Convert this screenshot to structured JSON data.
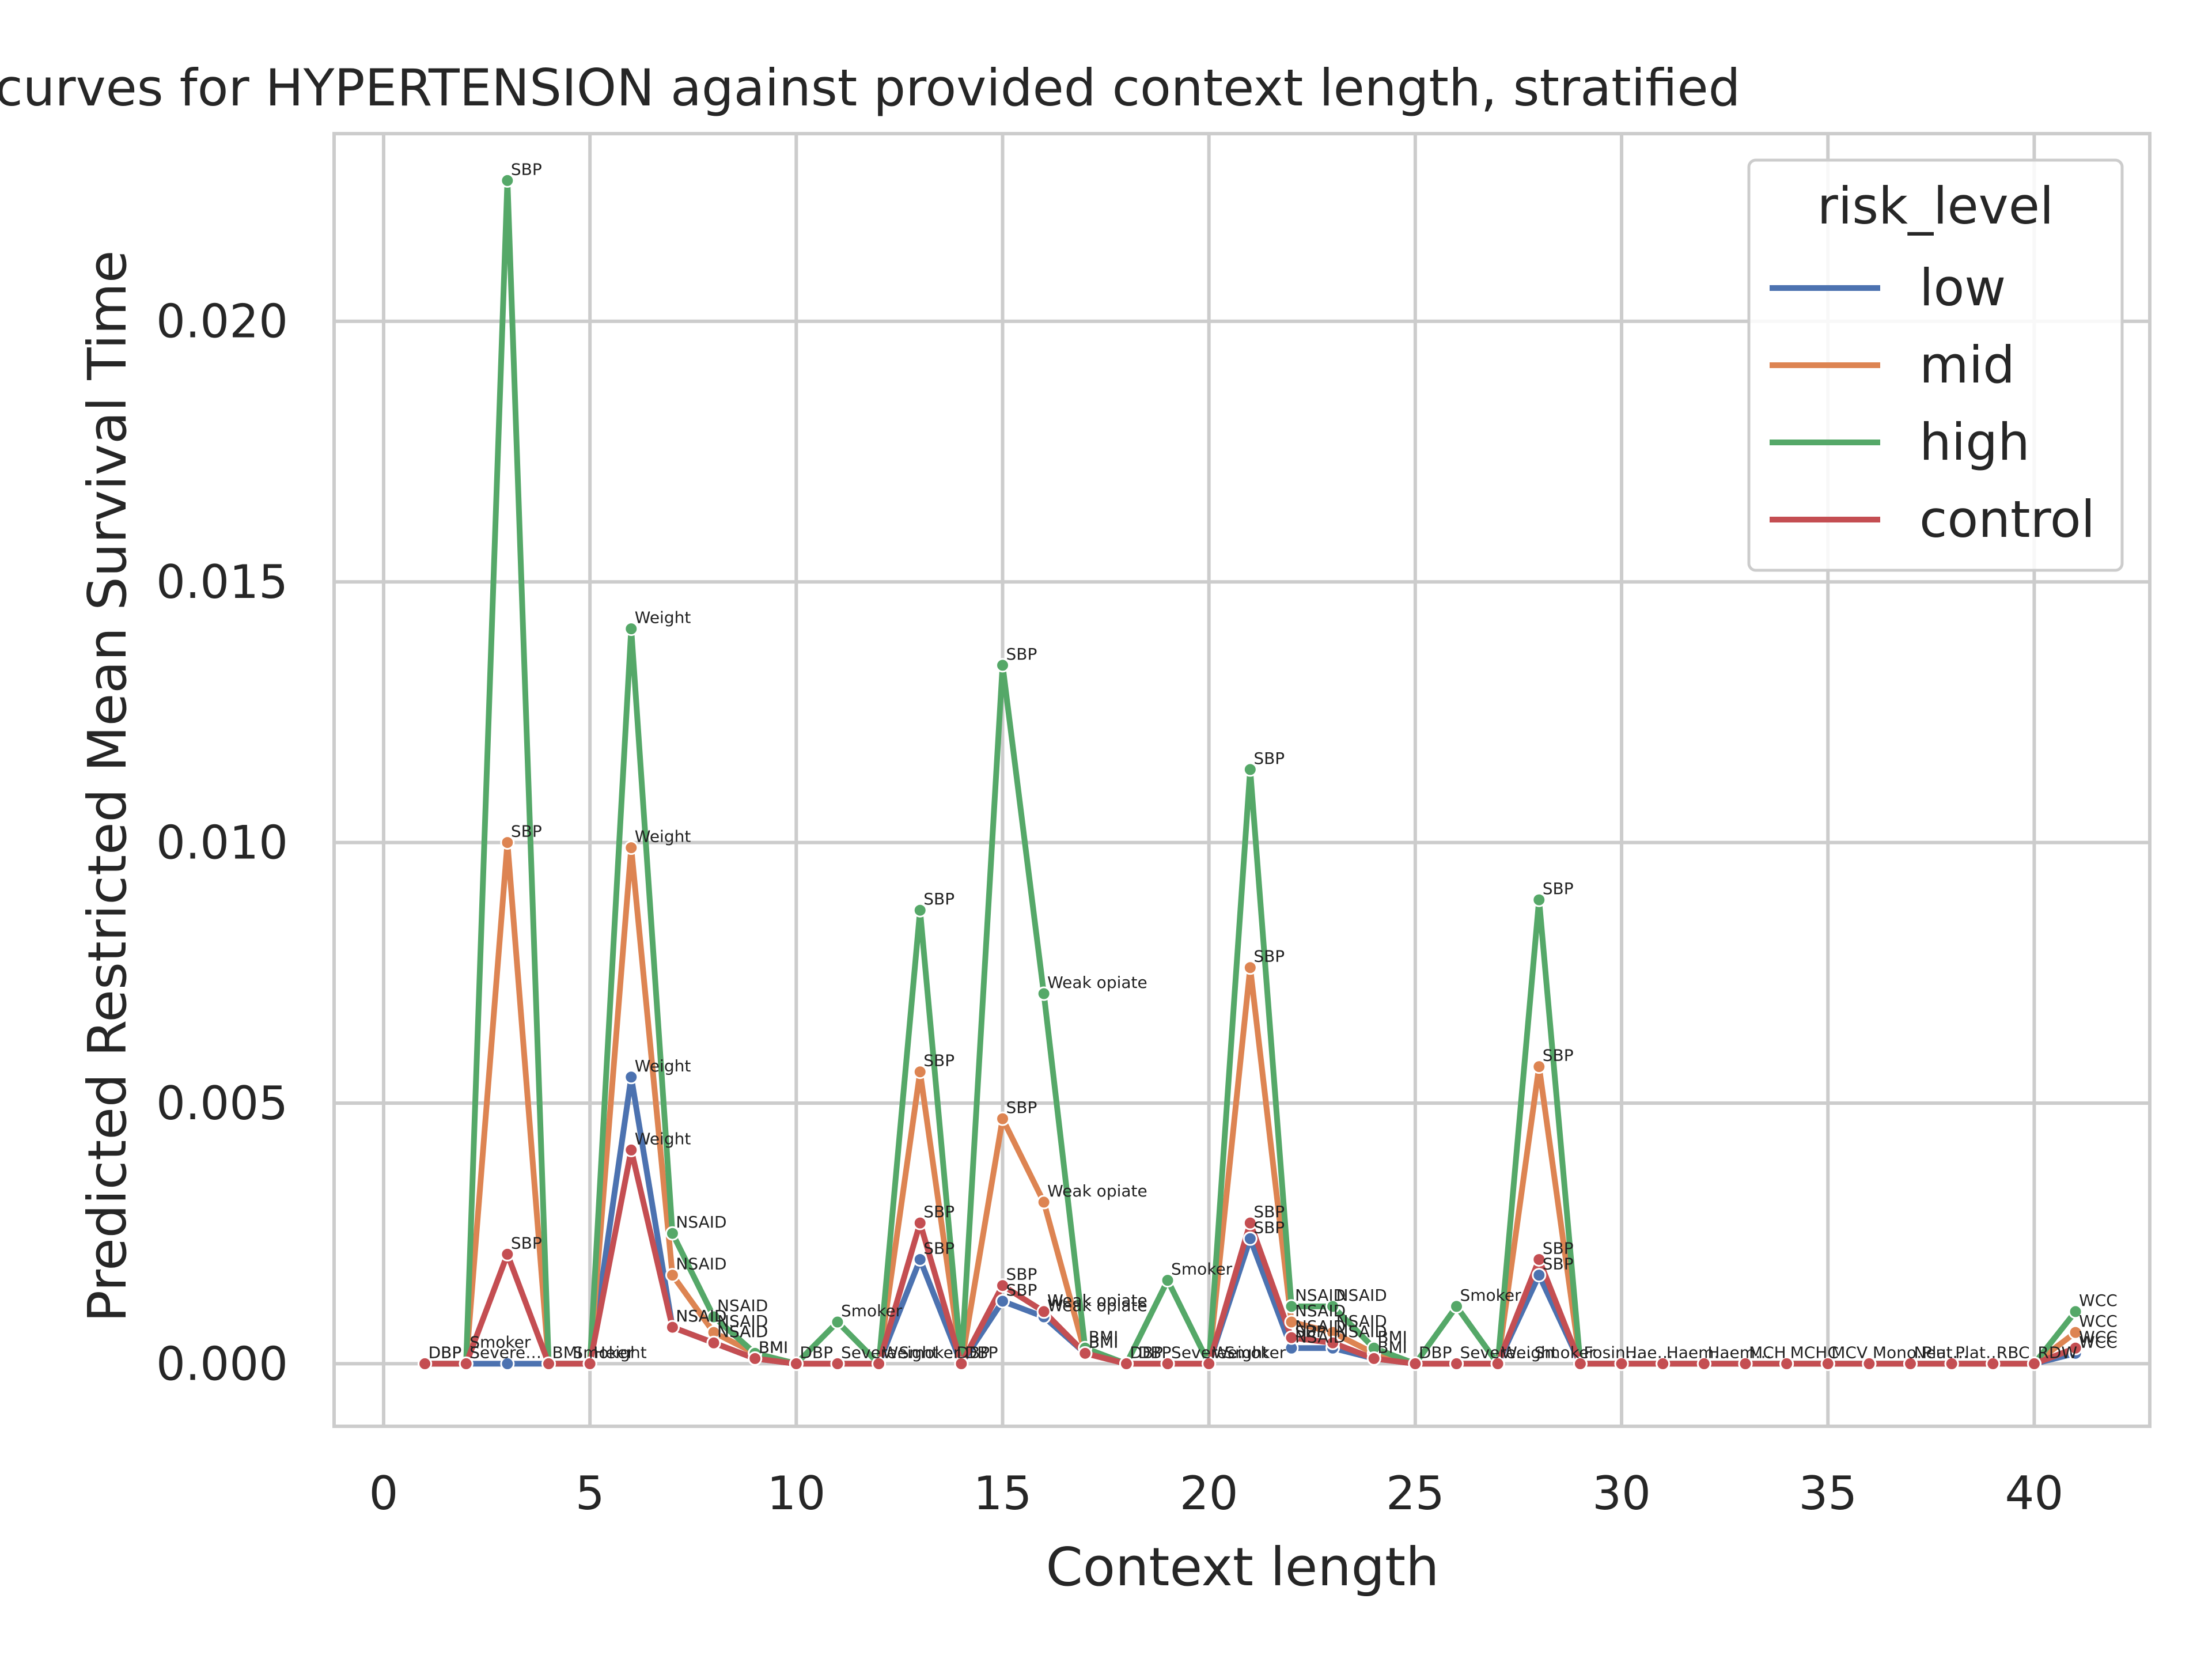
{
  "chart_data": {
    "type": "line",
    "title": "survival curves for HYPERTENSION against provided context length, stratified",
    "xlabel": "Context length",
    "ylabel": "Predicted Restricted Mean Survival Time",
    "xlim": [
      -1.2,
      42.8
    ],
    "ylim": [
      -0.0012,
      0.0236
    ],
    "xticks": [
      0,
      5,
      10,
      15,
      20,
      25,
      30,
      35,
      40
    ],
    "xtick_labels": [
      "0",
      "5",
      "10",
      "15",
      "20",
      "25",
      "30",
      "35",
      "40"
    ],
    "yticks": [
      0.0,
      0.005,
      0.01,
      0.015,
      0.02
    ],
    "ytick_labels": [
      "0.000",
      "0.005",
      "0.010",
      "0.015",
      "0.020"
    ],
    "grid": true,
    "legend": {
      "title": "risk_level",
      "placement": "top-right"
    },
    "x": [
      1,
      2,
      3,
      4,
      5,
      6,
      7,
      8,
      9,
      10,
      11,
      12,
      13,
      14,
      15,
      16,
      17,
      18,
      19,
      20,
      21,
      22,
      23,
      24,
      25,
      26,
      27,
      28,
      29,
      30,
      31,
      32,
      33,
      34,
      35,
      36,
      37,
      38,
      39,
      40,
      41
    ],
    "series": [
      {
        "name": "low",
        "color": "#4c72b0",
        "values": [
          0,
          0,
          0,
          0,
          0,
          0.0055,
          0.0007,
          0.0004,
          0.0001,
          0,
          0,
          0,
          0.002,
          0,
          0.0012,
          0.0009,
          0.0002,
          0,
          0,
          0,
          0.0024,
          0.0003,
          0.0003,
          0.0001,
          0,
          0,
          0,
          0.0017,
          0,
          0,
          0,
          0,
          0,
          0,
          0,
          0,
          0,
          0,
          0,
          0,
          0.0002
        ],
        "labels": [
          "DBP",
          "",
          "",
          "",
          "",
          "Weight",
          "NSAID",
          "NSAID",
          "BMI",
          "",
          "",
          "",
          "SBP",
          "",
          "SBP",
          "Weak opiate",
          "BMI",
          "",
          "",
          "",
          "SBP",
          "NSAID",
          "",
          "",
          "",
          "",
          "",
          "SBP",
          "",
          "",
          "",
          "",
          "",
          "",
          "",
          "",
          "",
          "",
          "",
          "",
          "WCC"
        ]
      },
      {
        "name": "mid",
        "color": "#dd8452",
        "values": [
          0,
          0,
          0.01,
          0,
          0,
          0.0099,
          0.0017,
          0.0006,
          0.0002,
          0,
          0,
          0,
          0.0056,
          0,
          0.0047,
          0.0031,
          0.0002,
          0,
          0,
          0,
          0.0076,
          0.0008,
          0.0006,
          0.0002,
          0,
          0,
          0,
          0.0057,
          0,
          0,
          0,
          0,
          0,
          0,
          0,
          0,
          0,
          0,
          0,
          0,
          0.0006
        ],
        "labels": [
          "",
          "",
          "SBP",
          "",
          "",
          "Weight",
          "NSAID",
          "NSAID",
          "",
          "",
          "",
          "",
          "SBP",
          "",
          "SBP",
          "Weak opiate",
          "",
          "",
          "",
          "",
          "SBP",
          "NSAID",
          "NSAID",
          "",
          "",
          "",
          "",
          "SBP",
          "",
          "",
          "",
          "",
          "",
          "",
          "",
          "",
          "",
          "",
          "",
          "",
          "WCC"
        ]
      },
      {
        "name": "high",
        "color": "#55a868",
        "values": [
          0,
          0,
          0.0227,
          0,
          0,
          0.0141,
          0.0025,
          0.0009,
          0.0002,
          0,
          0.0008,
          0,
          0.0087,
          0,
          0.0134,
          0.0071,
          0.0003,
          0,
          0.0016,
          0,
          0.0114,
          0.0011,
          0.0011,
          0.0003,
          0,
          0.0011,
          0,
          0.0089,
          0,
          0,
          0,
          0,
          0,
          0,
          0,
          0,
          0,
          0,
          0,
          0,
          0.001
        ],
        "labels": [
          "",
          "",
          "SBP",
          "",
          "",
          "Weight",
          "NSAID",
          "NSAID",
          "",
          "",
          "Smoker",
          "",
          "SBP",
          "",
          "SBP",
          "Weak opiate",
          "",
          "",
          "Smoker",
          "",
          "SBP",
          "NSAID",
          "NSAID",
          "",
          "",
          "Smoker",
          "",
          "SBP",
          "",
          "",
          "",
          "",
          "",
          "",
          "",
          "",
          "",
          "",
          "",
          "",
          "WCC"
        ]
      },
      {
        "name": "control",
        "color": "#c44e52",
        "values": [
          0,
          0,
          0.0021,
          0,
          0,
          0.0041,
          0.0007,
          0.0004,
          0.0001,
          0,
          0,
          0,
          0.0027,
          0,
          0.0015,
          0.001,
          0.0002,
          0,
          0,
          0,
          0.0027,
          0.0005,
          0.0004,
          0.0001,
          0,
          0,
          0,
          0.002,
          0,
          0,
          0,
          0,
          0,
          0,
          0,
          0,
          0,
          0,
          0,
          0,
          0.0003
        ],
        "labels": [
          "DBP",
          "Severe…",
          "SBP",
          "BMI",
          "Height",
          "Weight",
          "NSAID",
          "NSAID",
          "BMI",
          "DBP",
          "Severe…",
          "Weight",
          "SBP",
          "DBP",
          "SBP",
          "Weak opiate",
          "BMI",
          "DBP",
          "Severe…",
          "Weight",
          "SBP",
          "NSAID",
          "NSAID",
          "BMI",
          "DBP",
          "Severe…",
          "Weight",
          "SBP",
          "Fosin…",
          "Hae…",
          "Haem…",
          "Haem…",
          "MCH",
          "MCHC",
          "MCV",
          "Mono…",
          "Neut…",
          "Plat…",
          "RBC",
          "RDW",
          "WCC"
        ]
      }
    ],
    "extra_point_labels": [
      {
        "x": 2.0,
        "y": 0.0002,
        "text": "Smoker"
      },
      {
        "x": 4.5,
        "y": 0.0,
        "text": "Smoker"
      },
      {
        "x": 12.4,
        "y": 0.0,
        "text": "Smoker"
      },
      {
        "x": 13.8,
        "y": 0.0,
        "text": "DBP"
      },
      {
        "x": 16.0,
        "y": 0.001,
        "text": "Weak opiate"
      },
      {
        "x": 17.0,
        "y": 0.0003,
        "text": "BMI"
      },
      {
        "x": 18.2,
        "y": 0.0,
        "text": "DBP"
      },
      {
        "x": 20.3,
        "y": 0.0,
        "text": "Smoker"
      },
      {
        "x": 22.0,
        "y": 0.0004,
        "text": "SBP"
      },
      {
        "x": 24.0,
        "y": 0.0003,
        "text": "BMI"
      },
      {
        "x": 27.8,
        "y": 0.0,
        "text": "Smoker"
      },
      {
        "x": 37.2,
        "y": 0.0,
        "text": "Plat…"
      }
    ]
  }
}
